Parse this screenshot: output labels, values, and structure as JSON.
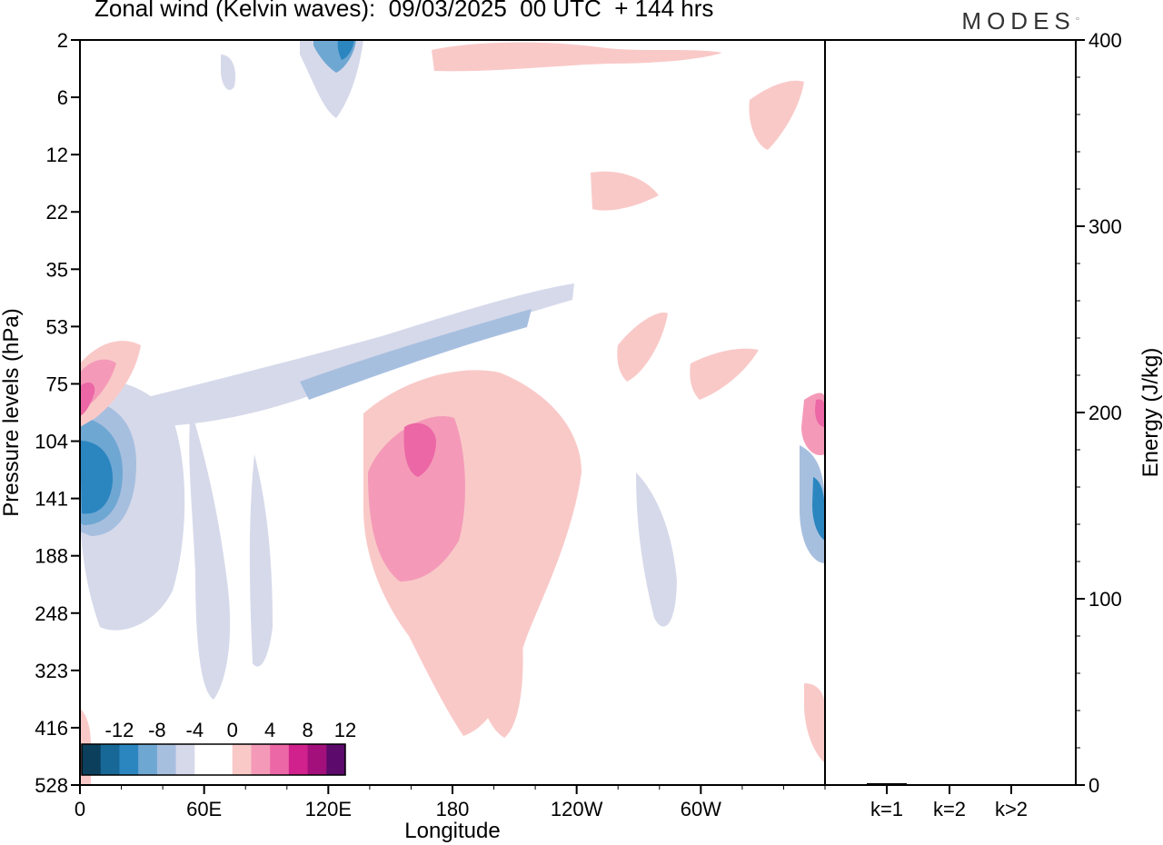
{
  "header": {
    "title": "Zonal wind (Kelvin waves):  09/03/2025  00 UTC  + 144 hrs",
    "brand": "MODES"
  },
  "chart_data": [
    {
      "type": "heatmap",
      "title": "Zonal wind (Kelvin waves):  09/03/2025  00 UTC  + 144 hrs",
      "xlabel": "Longitude",
      "ylabel": "Pressure levels (hPa)",
      "x_ticks": [
        "0",
        "60E",
        "120E",
        "180",
        "120W",
        "60W"
      ],
      "y_ticks": [
        "2",
        "6",
        "12",
        "22",
        "35",
        "53",
        "75",
        "104",
        "141",
        "188",
        "248",
        "323",
        "416",
        "528"
      ],
      "colorbar": {
        "labels": [
          "-12",
          "-8",
          "-4",
          "0",
          "4",
          "8",
          "12"
        ],
        "colors": [
          "#0b3f5c",
          "#176896",
          "#2b86c0",
          "#6fa7d3",
          "#a7bfdf",
          "#d6d9ea",
          "#ffffff",
          "#ffffff",
          "#f9c9c8",
          "#f49ab8",
          "#ec67a5",
          "#d0218c",
          "#a3107b",
          "#5c0a6c"
        ]
      },
      "features": [
        {
          "sign": "negative",
          "level": -12,
          "lon": 6,
          "pressure": 141
        },
        {
          "sign": "negative",
          "level": -8,
          "lon": 120,
          "pressure": 2
        },
        {
          "sign": "negative",
          "level": -4,
          "lon": 135,
          "pressure": 75
        },
        {
          "sign": "negative",
          "level": -4,
          "lon": 200,
          "pressure": 53
        },
        {
          "sign": "positive",
          "level": 8,
          "lon": 4,
          "pressure": 75
        },
        {
          "sign": "positive",
          "level": 8,
          "lon": 155,
          "pressure": 104
        },
        {
          "sign": "positive",
          "level": 4,
          "lon": 170,
          "pressure": 188
        },
        {
          "sign": "positive",
          "level": 4,
          "lon": 195,
          "pressure": 416
        }
      ]
    },
    {
      "type": "bar",
      "ylabel": "Energy (J/kg)",
      "categories": [
        "k=1",
        "k=2",
        "k>2"
      ],
      "values": [
        1,
        0.5,
        0.5
      ],
      "ylim": [
        0,
        400
      ],
      "yticks": [
        "0",
        "100",
        "200",
        "300",
        "400"
      ]
    }
  ]
}
